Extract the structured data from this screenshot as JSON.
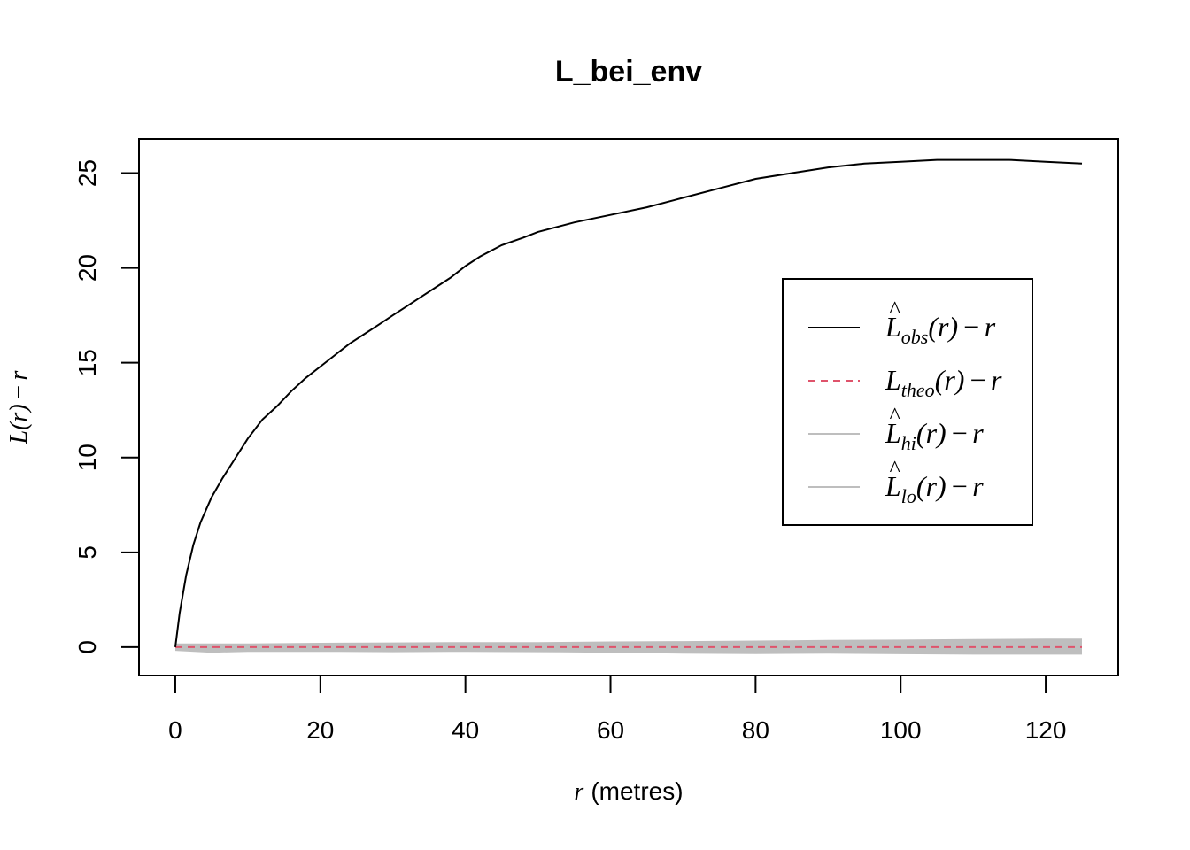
{
  "chart_data": {
    "type": "line",
    "title": "L_bei_env",
    "xlabel": {
      "var": "r",
      "unit": "(metres)"
    },
    "ylabel": {
      "func": "L",
      "arg": "r",
      "tail": "r"
    },
    "xlim": [
      -5,
      130
    ],
    "ylim": [
      -1.5,
      26.8
    ],
    "xticks": [
      0,
      20,
      40,
      60,
      80,
      100,
      120
    ],
    "yticks": [
      0,
      5,
      10,
      15,
      20,
      25
    ],
    "grid": false,
    "legend_position": "right",
    "legend": [
      {
        "key": "obs",
        "hat": true,
        "sub": "obs",
        "arg": "r",
        "tail": "r",
        "color": "#000000",
        "dash": "solid"
      },
      {
        "key": "theo",
        "hat": false,
        "sub": "theo",
        "arg": "r",
        "tail": "r",
        "color": "#DF536B",
        "dash": "dashed"
      },
      {
        "key": "hi",
        "hat": true,
        "sub": "hi",
        "arg": "r",
        "tail": "r",
        "color": "#BEBEBE",
        "dash": "solid"
      },
      {
        "key": "lo",
        "hat": true,
        "sub": "lo",
        "arg": "r",
        "tail": "r",
        "color": "#BEBEBE",
        "dash": "solid"
      }
    ],
    "series": [
      {
        "key": "obs",
        "color": "#000000",
        "x": [
          0,
          0.6,
          1.5,
          2.5,
          3.5,
          5,
          6.5,
          8,
          10,
          12,
          14,
          16,
          18,
          20,
          22,
          24,
          26,
          28,
          30,
          32,
          34,
          36,
          38,
          40,
          42,
          45,
          48,
          50,
          55,
          60,
          65,
          70,
          75,
          80,
          85,
          90,
          95,
          100,
          105,
          110,
          115,
          120,
          125
        ],
        "y": [
          0,
          1.8,
          3.8,
          5.4,
          6.6,
          7.9,
          8.9,
          9.8,
          11.0,
          12.0,
          12.7,
          13.5,
          14.2,
          14.8,
          15.4,
          16.0,
          16.5,
          17.0,
          17.5,
          18.0,
          18.5,
          19.0,
          19.5,
          20.1,
          20.6,
          21.2,
          21.6,
          21.9,
          22.4,
          22.8,
          23.2,
          23.7,
          24.2,
          24.7,
          25.0,
          25.3,
          25.5,
          25.6,
          25.7,
          25.7,
          25.7,
          25.6,
          25.5
        ]
      },
      {
        "key": "theo",
        "color": "#DF536B",
        "x": [
          0,
          125
        ],
        "y": [
          0,
          0
        ]
      },
      {
        "key": "hi",
        "color": "#BEBEBE",
        "x": [
          0,
          10,
          20,
          30,
          40,
          50,
          60,
          70,
          80,
          90,
          100,
          110,
          120,
          125
        ],
        "y": [
          0.15,
          0.15,
          0.18,
          0.2,
          0.22,
          0.22,
          0.25,
          0.27,
          0.3,
          0.33,
          0.35,
          0.38,
          0.4,
          0.4
        ]
      },
      {
        "key": "lo",
        "color": "#BEBEBE",
        "x": [
          0,
          5,
          10,
          20,
          30,
          40,
          50,
          60,
          70,
          80,
          90,
          100,
          110,
          120,
          125
        ],
        "y": [
          -0.15,
          -0.25,
          -0.2,
          -0.2,
          -0.22,
          -0.2,
          -0.22,
          -0.25,
          -0.3,
          -0.32,
          -0.3,
          -0.33,
          -0.35,
          -0.35,
          -0.35
        ]
      }
    ]
  }
}
